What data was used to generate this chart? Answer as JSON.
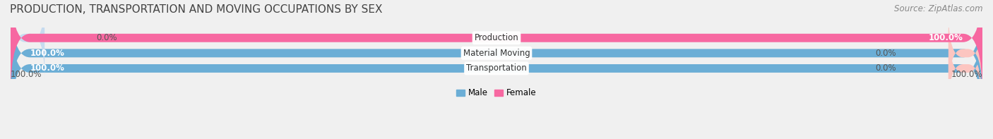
{
  "title": "PRODUCTION, TRANSPORTATION AND MOVING OCCUPATIONS BY SEX",
  "source": "Source: ZipAtlas.com",
  "categories": [
    "Transportation",
    "Material Moving",
    "Production"
  ],
  "male_values": [
    100.0,
    100.0,
    0.0
  ],
  "female_values": [
    0.0,
    0.0,
    100.0
  ],
  "male_color": "#6baed6",
  "female_color": "#f768a1",
  "male_color_light": "#c6dbef",
  "female_color_light": "#fcc5c0",
  "bg_color": "#f0f0f0",
  "bar_bg": "#e0e0e0",
  "title_fontsize": 11,
  "source_fontsize": 8.5,
  "label_fontsize": 8.5,
  "bar_height": 0.55,
  "figsize": [
    14.06,
    1.97
  ],
  "dpi": 100
}
